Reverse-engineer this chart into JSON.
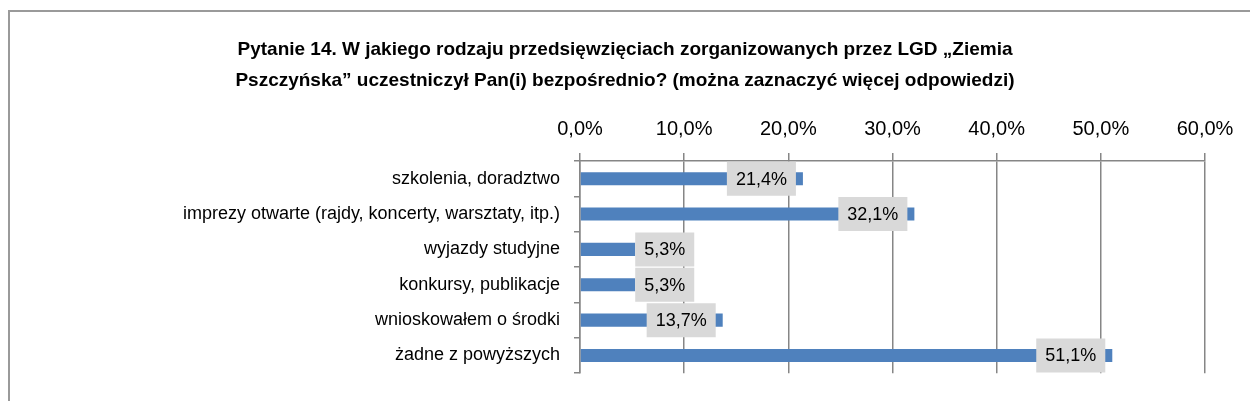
{
  "chart_data": {
    "type": "bar",
    "orientation": "horizontal",
    "title": "Pytanie 14. W jakiego rodzaju przedsięwzięciach zorganizowanych przez LGD „Ziemia Pszczyńska” uczestniczył Pan(i) bezpośrednio? (można zaznaczyć więcej odpowiedzi)",
    "categories": [
      "szkolenia, doradztwo",
      "imprezy otwarte (rajdy, koncerty, warsztaty, itp.)",
      "wyjazdy studyjne",
      "konkursy, publikacje",
      "wnioskowałem o środki",
      "żadne z powyższych"
    ],
    "values": [
      21.4,
      32.1,
      5.3,
      5.3,
      13.7,
      51.1
    ],
    "color": "#4f81bd",
    "value_labels": [
      "21,4%",
      "32,1%",
      "5,3%",
      "5,3%",
      "13,7%",
      "51,1%"
    ],
    "xlim": [
      0,
      60
    ],
    "xticks": [
      {
        "value": 0,
        "label": "0,0%"
      },
      {
        "value": 10,
        "label": "10,0%"
      },
      {
        "value": 20,
        "label": "20,0%"
      },
      {
        "value": 30,
        "label": "30,0%"
      },
      {
        "value": 40,
        "label": "40,0%"
      },
      {
        "value": 50,
        "label": "50,0%"
      },
      {
        "value": 60,
        "label": "60,0%"
      }
    ],
    "grid": "x"
  }
}
